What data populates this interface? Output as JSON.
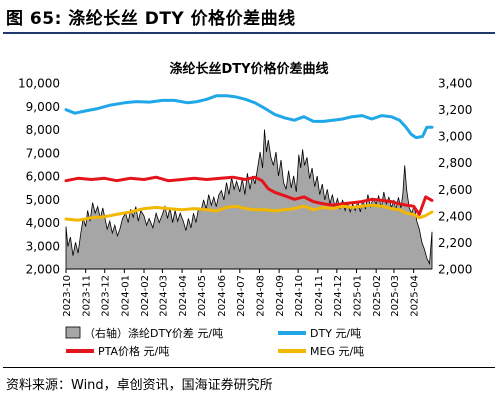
{
  "figure_title": "图 65:  涤纶长丝 DTY 价格价差曲线",
  "source_text": "资料来源：Wind，卓创资讯，国海证券研究所",
  "colors": {
    "spread_fill": "#a6a6a6",
    "spread_stroke": "#000000",
    "dty": "#1fa7e8",
    "pta": "#e5141b",
    "meg": "#f2b800",
    "title_rule": "#1f3a6b"
  },
  "chart_data": {
    "type": "area",
    "title": "涤纶长丝DTY价格价差曲线",
    "x_tick_labels": [
      "2023-10",
      "2023-11",
      "2023-12",
      "2024-01",
      "2024-02",
      "2024-03",
      "2024-04",
      "2024-05",
      "2024-06",
      "2024-07",
      "2024-08",
      "2024-09",
      "2024-10",
      "2024-11",
      "2024-12",
      "2025-01",
      "2025-02",
      "2025-03",
      "2025-04"
    ],
    "x_range": [
      "2023-10-01",
      "2025-04-30"
    ],
    "y_left": {
      "min": 2000,
      "max": 10000,
      "step": 1000,
      "tick_labels": [
        "2,000",
        "3,000",
        "4,000",
        "5,000",
        "6,000",
        "7,000",
        "8,000",
        "9,000",
        "10,000"
      ]
    },
    "y_right": {
      "min": 2000,
      "max": 3400,
      "step": 200,
      "tick_labels": [
        "2,000",
        "2,200",
        "2,400",
        "2,600",
        "2,800",
        "3,000",
        "3,200",
        "3,400"
      ]
    },
    "grid": false,
    "legend_position": "bottom",
    "series": [
      {
        "name": "（右轴）涤纶DTY价差  元/吨",
        "axis": "right",
        "type": "area",
        "points": [
          [
            "2023-10-01",
            2320
          ],
          [
            "2023-10-04",
            2170
          ],
          [
            "2023-10-08",
            2240
          ],
          [
            "2023-10-12",
            2100
          ],
          [
            "2023-10-16",
            2200
          ],
          [
            "2023-10-20",
            2120
          ],
          [
            "2023-10-24",
            2260
          ],
          [
            "2023-10-28",
            2380
          ],
          [
            "2023-11-01",
            2320
          ],
          [
            "2023-11-04",
            2440
          ],
          [
            "2023-11-08",
            2360
          ],
          [
            "2023-11-12",
            2500
          ],
          [
            "2023-11-16",
            2420
          ],
          [
            "2023-11-20",
            2470
          ],
          [
            "2023-11-24",
            2380
          ],
          [
            "2023-11-28",
            2460
          ],
          [
            "2023-12-01",
            2390
          ],
          [
            "2023-12-05",
            2300
          ],
          [
            "2023-12-09",
            2360
          ],
          [
            "2023-12-13",
            2270
          ],
          [
            "2023-12-17",
            2330
          ],
          [
            "2023-12-21",
            2250
          ],
          [
            "2023-12-25",
            2300
          ],
          [
            "2023-12-29",
            2380
          ],
          [
            "2024-01-03",
            2420
          ],
          [
            "2024-01-07",
            2350
          ],
          [
            "2024-01-11",
            2450
          ],
          [
            "2024-01-15",
            2390
          ],
          [
            "2024-01-19",
            2470
          ],
          [
            "2024-01-23",
            2360
          ],
          [
            "2024-01-27",
            2440
          ],
          [
            "2024-02-01",
            2400
          ],
          [
            "2024-02-05",
            2330
          ],
          [
            "2024-02-09",
            2380
          ],
          [
            "2024-02-15",
            2310
          ],
          [
            "2024-02-20",
            2420
          ],
          [
            "2024-02-25",
            2350
          ],
          [
            "2024-03-01",
            2410
          ],
          [
            "2024-03-05",
            2470
          ],
          [
            "2024-03-09",
            2380
          ],
          [
            "2024-03-13",
            2460
          ],
          [
            "2024-03-17",
            2350
          ],
          [
            "2024-03-21",
            2440
          ],
          [
            "2024-03-25",
            2360
          ],
          [
            "2024-03-29",
            2420
          ],
          [
            "2024-04-03",
            2360
          ],
          [
            "2024-04-07",
            2290
          ],
          [
            "2024-04-11",
            2380
          ],
          [
            "2024-04-15",
            2310
          ],
          [
            "2024-04-19",
            2420
          ],
          [
            "2024-04-23",
            2350
          ],
          [
            "2024-04-27",
            2460
          ],
          [
            "2024-05-01",
            2440
          ],
          [
            "2024-05-05",
            2520
          ],
          [
            "2024-05-09",
            2450
          ],
          [
            "2024-05-13",
            2560
          ],
          [
            "2024-05-17",
            2480
          ],
          [
            "2024-05-21",
            2540
          ],
          [
            "2024-05-25",
            2470
          ],
          [
            "2024-05-29",
            2560
          ],
          [
            "2024-06-02",
            2590
          ],
          [
            "2024-06-06",
            2520
          ],
          [
            "2024-06-10",
            2650
          ],
          [
            "2024-06-14",
            2560
          ],
          [
            "2024-06-18",
            2690
          ],
          [
            "2024-06-22",
            2600
          ],
          [
            "2024-06-26",
            2660
          ],
          [
            "2024-07-01",
            2580
          ],
          [
            "2024-07-05",
            2680
          ],
          [
            "2024-07-09",
            2560
          ],
          [
            "2024-07-13",
            2720
          ],
          [
            "2024-07-17",
            2600
          ],
          [
            "2024-07-21",
            2700
          ],
          [
            "2024-07-25",
            2640
          ],
          [
            "2024-07-29",
            2760
          ],
          [
            "2024-08-02",
            2880
          ],
          [
            "2024-08-06",
            2760
          ],
          [
            "2024-08-09",
            3050
          ],
          [
            "2024-08-12",
            2880
          ],
          [
            "2024-08-15",
            2970
          ],
          [
            "2024-08-19",
            2840
          ],
          [
            "2024-08-23",
            2780
          ],
          [
            "2024-08-27",
            2880
          ],
          [
            "2024-08-31",
            2700
          ],
          [
            "2024-09-04",
            2820
          ],
          [
            "2024-09-08",
            2650
          ],
          [
            "2024-09-12",
            2600
          ],
          [
            "2024-09-16",
            2740
          ],
          [
            "2024-09-20",
            2610
          ],
          [
            "2024-09-24",
            2700
          ],
          [
            "2024-09-28",
            2580
          ],
          [
            "2024-10-02",
            2860
          ],
          [
            "2024-10-05",
            2760
          ],
          [
            "2024-10-08",
            2900
          ],
          [
            "2024-10-11",
            2780
          ],
          [
            "2024-10-15",
            2840
          ],
          [
            "2024-10-19",
            2680
          ],
          [
            "2024-10-23",
            2760
          ],
          [
            "2024-10-27",
            2620
          ],
          [
            "2024-10-31",
            2700
          ],
          [
            "2024-11-04",
            2560
          ],
          [
            "2024-11-08",
            2640
          ],
          [
            "2024-11-12",
            2520
          ],
          [
            "2024-11-16",
            2600
          ],
          [
            "2024-11-20",
            2490
          ],
          [
            "2024-11-24",
            2560
          ],
          [
            "2024-11-28",
            2470
          ],
          [
            "2024-12-02",
            2530
          ],
          [
            "2024-12-06",
            2450
          ],
          [
            "2024-12-10",
            2520
          ],
          [
            "2024-12-14",
            2440
          ],
          [
            "2024-12-18",
            2500
          ],
          [
            "2024-12-22",
            2430
          ],
          [
            "2024-12-26",
            2490
          ],
          [
            "2024-12-30",
            2440
          ],
          [
            "2025-01-03",
            2510
          ],
          [
            "2025-01-07",
            2430
          ],
          [
            "2025-01-11",
            2520
          ],
          [
            "2025-01-15",
            2450
          ],
          [
            "2025-01-19",
            2560
          ],
          [
            "2025-01-23",
            2470
          ],
          [
            "2025-01-27",
            2530
          ],
          [
            "2025-02-01",
            2490
          ],
          [
            "2025-02-05",
            2550
          ],
          [
            "2025-02-09",
            2460
          ],
          [
            "2025-02-13",
            2580
          ],
          [
            "2025-02-17",
            2490
          ],
          [
            "2025-02-21",
            2540
          ],
          [
            "2025-02-25",
            2460
          ],
          [
            "2025-03-01",
            2520
          ],
          [
            "2025-03-04",
            2440
          ],
          [
            "2025-03-08",
            2540
          ],
          [
            "2025-03-12",
            2460
          ],
          [
            "2025-03-15",
            2560
          ],
          [
            "2025-03-18",
            2780
          ],
          [
            "2025-03-21",
            2600
          ],
          [
            "2025-03-25",
            2460
          ],
          [
            "2025-03-29",
            2420
          ],
          [
            "2025-04-02",
            2480
          ],
          [
            "2025-04-06",
            2360
          ],
          [
            "2025-04-10",
            2300
          ],
          [
            "2025-04-14",
            2200
          ],
          [
            "2025-04-18",
            2150
          ],
          [
            "2025-04-22",
            2080
          ],
          [
            "2025-04-26",
            2040
          ],
          [
            "2025-04-30",
            2280
          ]
        ]
      },
      {
        "name": "DTY  元/吨",
        "axis": "left",
        "type": "line",
        "points": [
          [
            "2023-10-01",
            8850
          ],
          [
            "2023-10-15",
            8700
          ],
          [
            "2023-11-01",
            8800
          ],
          [
            "2023-11-20",
            8900
          ],
          [
            "2023-12-10",
            9050
          ],
          [
            "2024-01-01",
            9150
          ],
          [
            "2024-01-20",
            9200
          ],
          [
            "2024-02-10",
            9180
          ],
          [
            "2024-03-01",
            9250
          ],
          [
            "2024-03-20",
            9250
          ],
          [
            "2024-04-10",
            9150
          ],
          [
            "2024-04-25",
            9200
          ],
          [
            "2024-05-10",
            9300
          ],
          [
            "2024-05-25",
            9450
          ],
          [
            "2024-06-10",
            9450
          ],
          [
            "2024-06-25",
            9400
          ],
          [
            "2024-07-10",
            9300
          ],
          [
            "2024-07-25",
            9150
          ],
          [
            "2024-08-10",
            8900
          ],
          [
            "2024-08-25",
            8650
          ],
          [
            "2024-09-10",
            8500
          ],
          [
            "2024-09-25",
            8400
          ],
          [
            "2024-10-10",
            8550
          ],
          [
            "2024-10-25",
            8350
          ],
          [
            "2024-11-10",
            8350
          ],
          [
            "2024-11-25",
            8400
          ],
          [
            "2024-12-10",
            8450
          ],
          [
            "2024-12-25",
            8550
          ],
          [
            "2025-01-10",
            8600
          ],
          [
            "2025-01-25",
            8450
          ],
          [
            "2025-02-10",
            8600
          ],
          [
            "2025-02-25",
            8550
          ],
          [
            "2025-03-10",
            8400
          ],
          [
            "2025-03-20",
            8100
          ],
          [
            "2025-03-28",
            7800
          ],
          [
            "2025-04-05",
            7650
          ],
          [
            "2025-04-15",
            7700
          ],
          [
            "2025-04-22",
            8100
          ],
          [
            "2025-04-30",
            8100
          ]
        ]
      },
      {
        "name": "PTA价格  元/吨",
        "axis": "left",
        "type": "line",
        "points": [
          [
            "2023-10-01",
            5800
          ],
          [
            "2023-10-20",
            5900
          ],
          [
            "2023-11-10",
            5850
          ],
          [
            "2023-12-01",
            5900
          ],
          [
            "2023-12-20",
            5800
          ],
          [
            "2024-01-10",
            5900
          ],
          [
            "2024-02-01",
            5850
          ],
          [
            "2024-02-20",
            5950
          ],
          [
            "2024-03-10",
            5800
          ],
          [
            "2024-04-01",
            5850
          ],
          [
            "2024-04-20",
            5900
          ],
          [
            "2024-05-10",
            5850
          ],
          [
            "2024-06-01",
            5900
          ],
          [
            "2024-06-20",
            5950
          ],
          [
            "2024-07-10",
            5850
          ],
          [
            "2024-07-25",
            5950
          ],
          [
            "2024-08-05",
            5800
          ],
          [
            "2024-08-15",
            5450
          ],
          [
            "2024-08-25",
            5300
          ],
          [
            "2024-09-10",
            5150
          ],
          [
            "2024-09-25",
            5000
          ],
          [
            "2024-10-10",
            5100
          ],
          [
            "2024-10-25",
            4900
          ],
          [
            "2024-11-10",
            4800
          ],
          [
            "2024-11-25",
            4750
          ],
          [
            "2024-12-10",
            4800
          ],
          [
            "2024-12-25",
            4850
          ],
          [
            "2025-01-10",
            4900
          ],
          [
            "2025-01-25",
            5000
          ],
          [
            "2025-02-10",
            4950
          ],
          [
            "2025-02-25",
            4900
          ],
          [
            "2025-03-10",
            4800
          ],
          [
            "2025-03-20",
            4750
          ],
          [
            "2025-04-01",
            4700
          ],
          [
            "2025-04-10",
            4350
          ],
          [
            "2025-04-20",
            5100
          ],
          [
            "2025-04-30",
            4950
          ]
        ]
      },
      {
        "name": "MEG  元/吨",
        "axis": "left",
        "type": "line",
        "points": [
          [
            "2023-10-01",
            4150
          ],
          [
            "2023-10-20",
            4100
          ],
          [
            "2023-11-10",
            4200
          ],
          [
            "2023-12-01",
            4250
          ],
          [
            "2023-12-20",
            4350
          ],
          [
            "2024-01-10",
            4450
          ],
          [
            "2024-02-01",
            4600
          ],
          [
            "2024-02-20",
            4650
          ],
          [
            "2024-03-10",
            4600
          ],
          [
            "2024-04-01",
            4550
          ],
          [
            "2024-04-20",
            4600
          ],
          [
            "2024-05-10",
            4550
          ],
          [
            "2024-05-25",
            4500
          ],
          [
            "2024-06-10",
            4650
          ],
          [
            "2024-06-25",
            4700
          ],
          [
            "2024-07-10",
            4600
          ],
          [
            "2024-07-25",
            4550
          ],
          [
            "2024-08-10",
            4550
          ],
          [
            "2024-08-25",
            4500
          ],
          [
            "2024-09-10",
            4550
          ],
          [
            "2024-09-25",
            4600
          ],
          [
            "2024-10-10",
            4700
          ],
          [
            "2024-10-25",
            4550
          ],
          [
            "2024-11-10",
            4650
          ],
          [
            "2024-11-25",
            4600
          ],
          [
            "2024-12-10",
            4700
          ],
          [
            "2024-12-25",
            4650
          ],
          [
            "2025-01-10",
            4700
          ],
          [
            "2025-01-25",
            4750
          ],
          [
            "2025-02-10",
            4700
          ],
          [
            "2025-02-25",
            4600
          ],
          [
            "2025-03-10",
            4550
          ],
          [
            "2025-03-20",
            4400
          ],
          [
            "2025-04-01",
            4350
          ],
          [
            "2025-04-10",
            4200
          ],
          [
            "2025-04-20",
            4300
          ],
          [
            "2025-04-30",
            4450
          ]
        ]
      }
    ]
  }
}
